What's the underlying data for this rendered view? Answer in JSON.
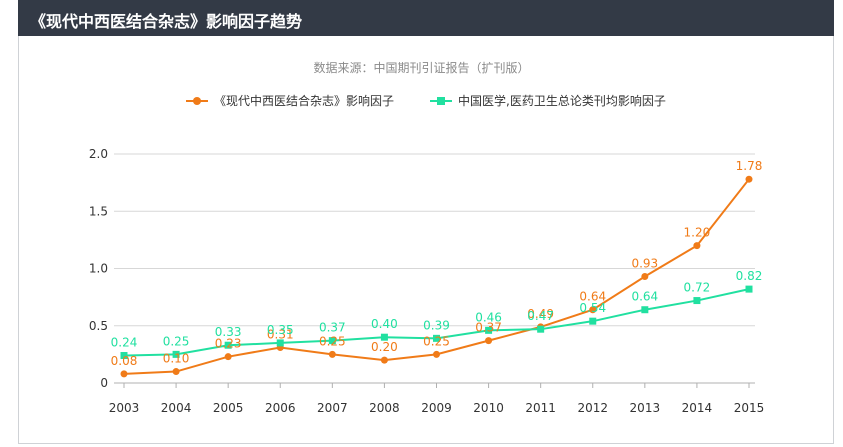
{
  "header": {
    "title": "《现代中西医结合杂志》影响因子趋势"
  },
  "source": "数据来源：中国期刊引证报告（扩刊版）",
  "colors": {
    "series1": "#f07b18",
    "series2": "#21e0a0",
    "grid": "#d7d7d7",
    "axis": "#b0b0b0",
    "tick": "#333333"
  },
  "chart_data": {
    "type": "line",
    "x": [
      "2003",
      "2004",
      "2005",
      "2006",
      "2007",
      "2008",
      "2009",
      "2010",
      "2011",
      "2012",
      "2013",
      "2014",
      "2015"
    ],
    "ylim": [
      0,
      2.0
    ],
    "yticks": [
      "0",
      "0.5",
      "1.0",
      "1.5",
      "2.0"
    ],
    "grid": true,
    "legend_position": "top",
    "series": [
      {
        "name": "《现代中西医结合杂志》影响因子",
        "marker": "circle",
        "values": [
          0.08,
          0.1,
          0.23,
          0.31,
          0.25,
          0.2,
          0.25,
          0.37,
          0.49,
          0.64,
          0.93,
          1.2,
          1.78
        ],
        "labels": [
          "0.08",
          "0.10",
          "0.23",
          "0.31",
          "0.25",
          "0.20",
          "0.25",
          "0.37",
          "0.49",
          "0.64",
          "0.93",
          "1.20",
          "1.78"
        ]
      },
      {
        "name": "中国医学,医药卫生总论类刊均影响因子",
        "marker": "square",
        "values": [
          0.24,
          0.25,
          0.33,
          0.35,
          0.37,
          0.4,
          0.39,
          0.46,
          0.47,
          0.54,
          0.64,
          0.72,
          0.82
        ],
        "labels": [
          "0.24",
          "0.25",
          "0.33",
          "0.35",
          "0.37",
          "0.40",
          "0.39",
          "0.46",
          "0.47",
          "0.54",
          "0.64",
          "0.72",
          "0.82"
        ]
      }
    ]
  }
}
